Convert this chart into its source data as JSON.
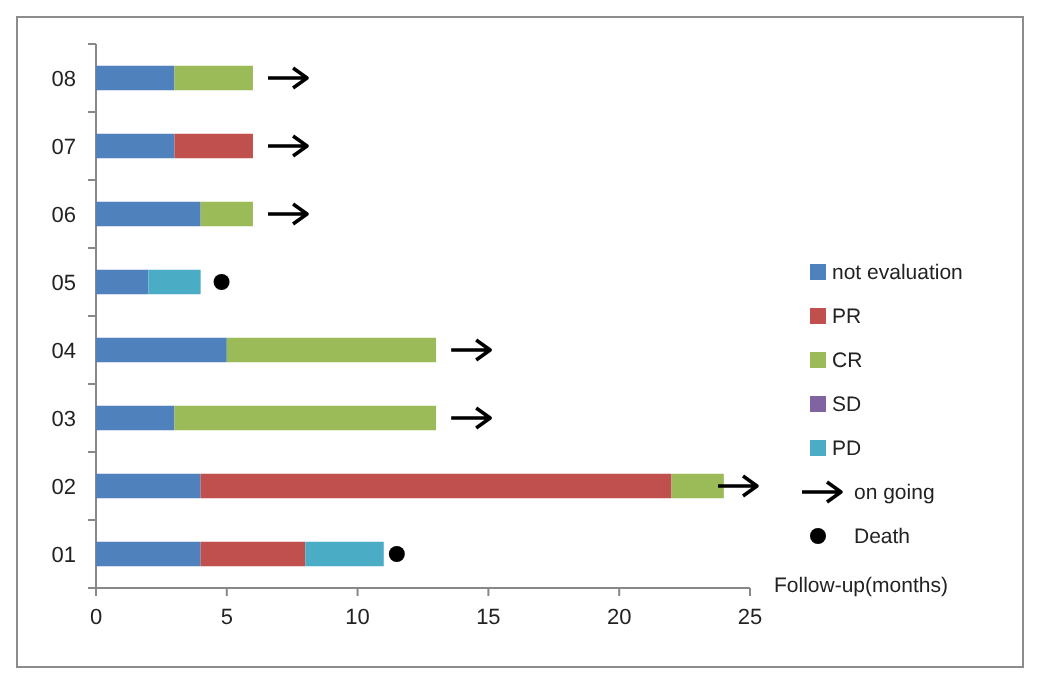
{
  "chart_data": {
    "type": "bar",
    "orientation": "horizontal",
    "stacked": true,
    "xlabel": "Follow-up(months)",
    "categories": [
      "08",
      "07",
      "06",
      "05",
      "04",
      "03",
      "02",
      "01"
    ],
    "xlim": [
      0,
      25
    ],
    "xticks": [
      0,
      5,
      10,
      15,
      20,
      25
    ],
    "grid": false,
    "legend": "right",
    "series": [
      {
        "name": "not evaluation",
        "color": "#4f81bd",
        "values": [
          3,
          3,
          4,
          2,
          5,
          3,
          4,
          4
        ]
      },
      {
        "name": "PR",
        "color": "#c0504d",
        "values": [
          null,
          3,
          null,
          null,
          null,
          null,
          18,
          4
        ]
      },
      {
        "name": "CR",
        "color": "#9bbb59",
        "values": [
          3,
          null,
          2,
          null,
          8,
          10,
          2,
          null
        ]
      },
      {
        "name": "SD",
        "color": "#8064a2",
        "values": [
          null,
          null,
          null,
          null,
          null,
          null,
          null,
          null
        ]
      },
      {
        "name": "PD",
        "color": "#4bacc6",
        "values": [
          null,
          null,
          null,
          2,
          null,
          null,
          null,
          3
        ]
      },
      {
        "name": "on going",
        "type": "scatter",
        "color": "#000000",
        "values": [
          7.8,
          7.8,
          7.8,
          null,
          14.8,
          14.8,
          25,
          null
        ]
      },
      {
        "name": "Death",
        "type": "scatter",
        "marker": "circle",
        "color": "#000000",
        "values": [
          null,
          null,
          null,
          4.8,
          null,
          null,
          null,
          11.5
        ]
      }
    ]
  }
}
